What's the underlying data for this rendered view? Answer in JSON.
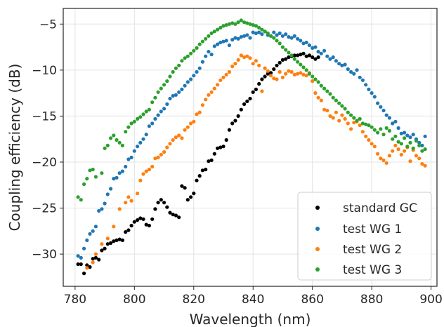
{
  "chart_data": {
    "type": "scatter",
    "title": "",
    "xlabel": "Wavelength (nm)",
    "ylabel": "Coupling efficiency (dB)",
    "xlim": [
      776,
      902
    ],
    "ylim": [
      -33.5,
      -3.3
    ],
    "xticks": [
      780,
      800,
      820,
      840,
      860,
      880,
      900
    ],
    "yticks": [
      -30,
      -25,
      -20,
      -15,
      -10,
      -5
    ],
    "grid": true,
    "legend_position": "lower-right",
    "series": [
      {
        "name": "standard GC",
        "color": "#000000",
        "x": [
          781,
          782,
          783,
          784,
          785,
          786,
          787,
          788,
          789,
          790,
          791,
          792,
          793,
          794,
          795,
          796,
          797,
          798,
          799,
          800,
          801,
          802,
          803,
          804,
          805,
          806,
          807,
          808,
          809,
          810,
          811,
          812,
          813,
          814,
          815,
          816,
          817,
          818,
          819,
          820,
          821,
          822,
          823,
          824,
          825,
          826,
          827,
          828,
          829,
          830,
          831,
          832,
          833,
          834,
          835,
          836,
          837,
          838,
          839,
          840,
          841,
          842,
          843,
          844,
          845,
          846,
          847,
          848,
          849,
          850,
          851,
          852,
          853,
          854,
          855,
          856,
          857,
          858,
          859,
          860,
          861,
          862
        ],
        "y": [
          -31.1,
          -31.1,
          -32.1,
          -31.2,
          -31.4,
          -30.5,
          -30.4,
          -30.6,
          -29.6,
          -29.4,
          -28.9,
          -28.8,
          -28.6,
          -28.5,
          -28.4,
          -28.5,
          -27.6,
          -27.4,
          -26.9,
          -26.5,
          -26.3,
          -26.1,
          -26.2,
          -26.8,
          -26.9,
          -26.2,
          -25.1,
          -24.4,
          -24.1,
          -24.4,
          -24.9,
          -25.5,
          -25.7,
          -25.8,
          -26.0,
          -22.6,
          -22.8,
          -24.1,
          -23.8,
          -23.4,
          -22.0,
          -21.5,
          -20.9,
          -20.8,
          -19.9,
          -19.8,
          -19.1,
          -18.5,
          -18.4,
          -18.3,
          -17.6,
          -16.5,
          -15.8,
          -15.5,
          -15.0,
          -14.3,
          -13.7,
          -13.4,
          -13.1,
          -12.4,
          -12.1,
          -11.5,
          -11.0,
          -10.7,
          -10.4,
          -10.3,
          -9.9,
          -9.5,
          -9.2,
          -8.9,
          -8.8,
          -8.6,
          -8.5,
          -8.4,
          -8.4,
          -8.3,
          -8.2,
          -8.5,
          -8.4,
          -8.6,
          -8.8,
          -8.6
        ]
      },
      {
        "name": "test WG 1",
        "color": "#1f77b4",
        "x": [
          781,
          782,
          783,
          784,
          785,
          786,
          787,
          788,
          789,
          790,
          791,
          792,
          793,
          794,
          795,
          796,
          797,
          798,
          799,
          800,
          801,
          802,
          803,
          804,
          805,
          806,
          807,
          808,
          809,
          810,
          811,
          812,
          813,
          814,
          815,
          816,
          817,
          818,
          819,
          820,
          821,
          822,
          823,
          824,
          825,
          826,
          827,
          828,
          829,
          830,
          831,
          832,
          833,
          834,
          835,
          836,
          837,
          838,
          839,
          840,
          841,
          842,
          843,
          844,
          845,
          846,
          847,
          848,
          849,
          850,
          851,
          852,
          853,
          854,
          855,
          856,
          857,
          858,
          859,
          860,
          861,
          862,
          863,
          864,
          865,
          866,
          867,
          868,
          869,
          870,
          871,
          872,
          873,
          874,
          875,
          876,
          877,
          878,
          879,
          880,
          881,
          882,
          883,
          884,
          885,
          886,
          887,
          888,
          889,
          890,
          891,
          892,
          893,
          894,
          895,
          896,
          897,
          898
        ],
        "y": [
          -30.2,
          -30.4,
          -29.4,
          -28.5,
          -27.8,
          -27.5,
          -27.0,
          -25.3,
          -25.1,
          -24.5,
          -23.5,
          -22.9,
          -21.8,
          -21.7,
          -21.2,
          -21.0,
          -20.5,
          -19.7,
          -19.5,
          -18.8,
          -18.3,
          -17.9,
          -17.5,
          -17.0,
          -16.1,
          -15.8,
          -15.3,
          -14.9,
          -14.5,
          -14.2,
          -13.7,
          -13.1,
          -12.8,
          -12.7,
          -12.4,
          -12.1,
          -11.7,
          -11.3,
          -11.0,
          -10.6,
          -10.2,
          -9.8,
          -9.1,
          -8.5,
          -8.0,
          -8.3,
          -7.4,
          -7.2,
          -7.0,
          -6.9,
          -6.8,
          -7.3,
          -6.7,
          -6.5,
          -6.6,
          -6.4,
          -6.3,
          -6.2,
          -6.5,
          -5.9,
          -6.0,
          -5.9,
          -6.1,
          -5.8,
          -6.2,
          -6.3,
          -5.9,
          -6.2,
          -6.0,
          -6.3,
          -6.1,
          -6.4,
          -6.5,
          -6.3,
          -6.6,
          -6.8,
          -7.1,
          -7.0,
          -7.3,
          -7.6,
          -7.5,
          -8.0,
          -8.2,
          -7.9,
          -8.5,
          -8.8,
          -8.6,
          -9.0,
          -9.3,
          -9.5,
          -9.4,
          -9.9,
          -10.2,
          -10.4,
          -10.0,
          -10.8,
          -11.1,
          -11.6,
          -12.1,
          -12.5,
          -12.9,
          -13.6,
          -14.0,
          -14.4,
          -14.9,
          -15.2,
          -15.8,
          -15.6,
          -16.3,
          -16.9,
          -16.8,
          -17.1,
          -17.3,
          -17.0,
          -17.5,
          -17.9,
          -18.2,
          -17.2
        ]
      },
      {
        "name": "test WG 2",
        "color": "#ff7f0e",
        "x": [
          784,
          786,
          787,
          789,
          791,
          793,
          795,
          797,
          798,
          799,
          801,
          802,
          803,
          804,
          805,
          806,
          807,
          808,
          809,
          810,
          811,
          812,
          813,
          814,
          815,
          816,
          817,
          818,
          819,
          820,
          821,
          822,
          823,
          824,
          825,
          826,
          827,
          828,
          829,
          830,
          831,
          832,
          833,
          834,
          835,
          836,
          837,
          838,
          839,
          840,
          841,
          842,
          843,
          844,
          845,
          846,
          847,
          848,
          849,
          850,
          851,
          852,
          853,
          854,
          855,
          856,
          857,
          858,
          859,
          860,
          861,
          862,
          863,
          864,
          865,
          866,
          867,
          868,
          869,
          870,
          871,
          872,
          873,
          874,
          875,
          876,
          877,
          878,
          879,
          880,
          881,
          882,
          883,
          884,
          885,
          886,
          887,
          888,
          889,
          890,
          891,
          892,
          893,
          894,
          895,
          896,
          897,
          898
        ],
        "y": [
          -31.5,
          -30.9,
          -30.0,
          -28.9,
          -28.3,
          -27.0,
          -25.1,
          -24.4,
          -23.8,
          -24.2,
          -23.4,
          -22.0,
          -21.3,
          -21.0,
          -20.8,
          -20.5,
          -19.6,
          -19.5,
          -19.2,
          -18.9,
          -18.4,
          -18.0,
          -17.6,
          -17.3,
          -17.1,
          -17.4,
          -16.5,
          -16.2,
          -15.8,
          -15.6,
          -14.8,
          -14.6,
          -13.8,
          -13.2,
          -12.7,
          -12.4,
          -12.0,
          -11.6,
          -11.1,
          -10.8,
          -10.5,
          -10.2,
          -9.6,
          -9.3,
          -8.9,
          -8.4,
          -8.6,
          -8.5,
          -8.7,
          -9.3,
          -9.0,
          -9.5,
          -12.3,
          -9.8,
          -10.1,
          -10.6,
          -10.9,
          -11.0,
          -10.2,
          -10.8,
          -10.4,
          -10.1,
          -10.2,
          -10.5,
          -10.4,
          -10.3,
          -10.5,
          -10.6,
          -10.3,
          -11.2,
          -12.5,
          -13.0,
          -13.3,
          -14.3,
          -14.4,
          -15.0,
          -15.2,
          -14.6,
          -15.5,
          -14.9,
          -15.3,
          -15.8,
          -16.4,
          -15.7,
          -15.6,
          -16.0,
          -16.7,
          -17.2,
          -17.6,
          -18.0,
          -18.3,
          -19.1,
          -19.6,
          -19.8,
          -20.1,
          -19.3,
          -18.8,
          -18.2,
          -18.6,
          -19.2,
          -18.8,
          -18.4,
          -19.9,
          -18.7,
          -19.3,
          -19.6,
          -20.2,
          -20.4
        ]
      },
      {
        "name": "test WG 3",
        "color": "#2ca02c",
        "x": [
          781,
          782,
          783,
          784,
          785,
          786,
          787,
          789,
          790,
          791,
          792,
          793,
          794,
          795,
          796,
          797,
          798,
          799,
          800,
          801,
          802,
          803,
          804,
          805,
          806,
          807,
          808,
          809,
          810,
          811,
          812,
          813,
          814,
          815,
          816,
          817,
          818,
          819,
          820,
          821,
          822,
          823,
          824,
          825,
          826,
          827,
          828,
          829,
          830,
          831,
          832,
          833,
          834,
          835,
          836,
          837,
          838,
          839,
          840,
          841,
          842,
          843,
          844,
          845,
          846,
          847,
          848,
          849,
          850,
          851,
          852,
          853,
          854,
          855,
          856,
          857,
          858,
          859,
          860,
          861,
          862,
          863,
          864,
          865,
          866,
          867,
          868,
          869,
          870,
          871,
          872,
          873,
          874,
          875,
          876,
          877,
          878,
          879,
          880,
          881,
          882,
          883,
          884,
          885,
          886,
          887,
          888,
          889,
          890,
          891,
          892,
          893,
          894,
          895,
          896,
          897,
          898
        ],
        "y": [
          -23.8,
          -24.1,
          -22.4,
          -21.8,
          -20.9,
          -20.8,
          -21.6,
          -21.2,
          -18.5,
          -18.2,
          -17.4,
          -17.1,
          -17.6,
          -17.9,
          -18.2,
          -16.7,
          -16.2,
          -15.8,
          -15.6,
          -15.3,
          -15.1,
          -14.8,
          -14.5,
          -14.3,
          -13.5,
          -13.0,
          -12.4,
          -12.0,
          -11.6,
          -11.2,
          -10.7,
          -10.2,
          -9.8,
          -9.5,
          -9.0,
          -8.7,
          -8.5,
          -8.2,
          -7.9,
          -7.6,
          -7.2,
          -6.9,
          -6.6,
          -6.3,
          -6.0,
          -5.8,
          -5.6,
          -5.4,
          -5.2,
          -5.1,
          -5.0,
          -4.9,
          -5.0,
          -4.8,
          -4.6,
          -4.8,
          -4.9,
          -5.0,
          -5.1,
          -5.2,
          -5.4,
          -5.6,
          -5.8,
          -6.0,
          -6.3,
          -6.5,
          -6.8,
          -7.1,
          -7.5,
          -7.8,
          -8.1,
          -8.4,
          -8.8,
          -9.1,
          -9.4,
          -9.7,
          -10.0,
          -10.4,
          -10.7,
          -11.0,
          -11.3,
          -11.7,
          -12.0,
          -12.3,
          -12.6,
          -13.0,
          -13.3,
          -13.6,
          -13.9,
          -14.2,
          -14.6,
          -14.9,
          -15.2,
          -15.5,
          -15.3,
          -15.8,
          -15.9,
          -16.0,
          -16.2,
          -16.5,
          -16.8,
          -16.4,
          -17.0,
          -16.3,
          -16.6,
          -17.5,
          -17.2,
          -17.8,
          -18.0,
          -17.4,
          -18.3,
          -17.9,
          -18.5,
          -17.7,
          -18.2,
          -18.8,
          -18.6
        ]
      }
    ]
  }
}
